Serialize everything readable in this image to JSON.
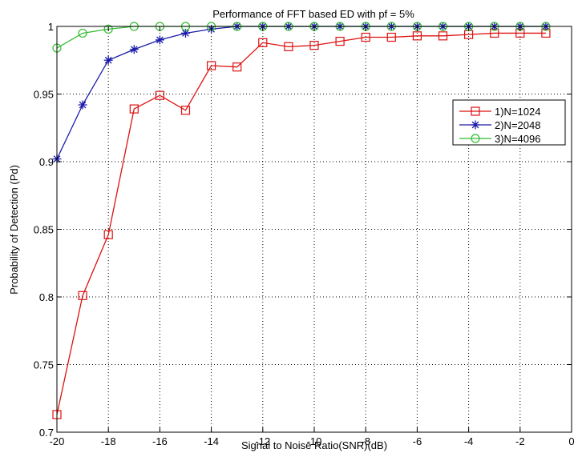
{
  "chart_data": {
    "type": "line",
    "title": "Performance of FFT based ED with pf = 5%",
    "xlabel": "Signal to Noise Ratio(SNR)(dB)",
    "ylabel": "Probability of Detection (Pd)",
    "xlim": [
      -20,
      0
    ],
    "ylim": [
      0.7,
      1
    ],
    "xticks": [
      -20,
      -18,
      -16,
      -14,
      -12,
      -10,
      -8,
      -6,
      -4,
      -2,
      0
    ],
    "yticks": [
      0.7,
      0.75,
      0.8,
      0.85,
      0.9,
      0.95,
      1
    ],
    "xtick_labels": [
      "-20",
      "-18",
      "-16",
      "-14",
      "-12",
      "-10",
      "-8",
      "-6",
      "-4",
      "-2",
      "0"
    ],
    "ytick_labels": [
      "0.7",
      "0.75",
      "0.8",
      "0.85",
      "0.9",
      "0.95",
      "1"
    ],
    "grid": true,
    "legend_position": "top-right",
    "series": [
      {
        "name": "1)N=1024",
        "color": "#dd1111",
        "marker": "square",
        "x": [
          -20,
          -19,
          -18,
          -17,
          -16,
          -15,
          -14,
          -13,
          -12,
          -11,
          -10,
          -9,
          -8,
          -7,
          -6,
          -5,
          -4,
          -3,
          -2,
          -1
        ],
        "y": [
          0.713,
          0.801,
          0.846,
          0.939,
          0.949,
          0.938,
          0.971,
          0.97,
          0.988,
          0.985,
          0.986,
          0.989,
          0.992,
          0.992,
          0.993,
          0.993,
          0.994,
          0.995,
          0.995,
          0.995
        ]
      },
      {
        "name": "2)N=2048",
        "color": "#1a1aaa",
        "marker": "star",
        "x": [
          -20,
          -19,
          -18,
          -17,
          -16,
          -15,
          -14,
          -13,
          -12,
          -11,
          -10,
          -9,
          -8,
          -7,
          -6,
          -5,
          -4,
          -3,
          -2,
          -1
        ],
        "y": [
          0.902,
          0.942,
          0.975,
          0.983,
          0.99,
          0.995,
          0.998,
          1.0,
          1.0,
          1.0,
          1.0,
          1.0,
          1.0,
          1.0,
          1.0,
          1.0,
          1.0,
          1.0,
          1.0,
          1.0
        ]
      },
      {
        "name": "3)N=4096",
        "color": "#33bb33",
        "marker": "circle",
        "x": [
          -20,
          -19,
          -18,
          -17,
          -16,
          -15,
          -14,
          -13,
          -12,
          -11,
          -10,
          -9,
          -8,
          -7,
          -6,
          -5,
          -4,
          -3,
          -2,
          -1
        ],
        "y": [
          0.984,
          0.995,
          0.998,
          1.0,
          1.0,
          1.0,
          1.0,
          1.0,
          1.0,
          1.0,
          1.0,
          1.0,
          1.0,
          1.0,
          1.0,
          1.0,
          1.0,
          1.0,
          1.0,
          1.0
        ]
      }
    ]
  }
}
